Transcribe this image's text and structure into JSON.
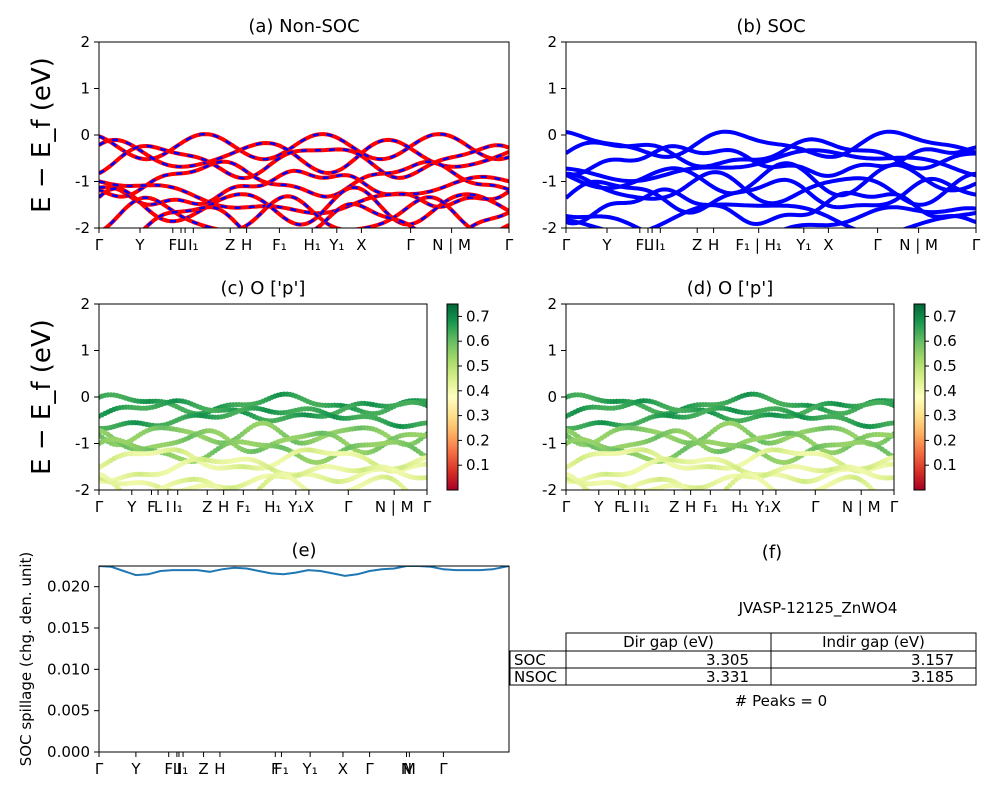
{
  "chart_data": [
    {
      "id": "a",
      "type": "line",
      "title": "(a) Non-SOC",
      "ylabel": "E − E_f (eV)",
      "ylim": [
        -2,
        2
      ],
      "yticks": [
        "-2",
        "-1",
        "0",
        "1",
        "2"
      ],
      "kpath_labels": [
        "Γ",
        "Y",
        "F",
        "L",
        "I",
        "I₁",
        "Z",
        "H",
        "F₁",
        "H₁",
        "Y₁",
        "X",
        "Γ",
        "N | M",
        "Γ"
      ],
      "kpath_positions": [
        0,
        0.1,
        0.18,
        0.2,
        0.21,
        0.23,
        0.32,
        0.36,
        0.44,
        0.52,
        0.58,
        0.64,
        0.76,
        0.86,
        1.0
      ],
      "series": [
        {
          "color": "#ff0000",
          "energies": [
            -0.25,
            -0.45,
            -0.55,
            -0.95,
            -1.15,
            -1.3,
            -1.55,
            -1.75,
            -1.9
          ]
        },
        {
          "color": "#0000ff",
          "energies": [
            -0.25,
            -0.45,
            -0.55,
            -0.95,
            -1.15,
            -1.3,
            -1.55,
            -1.75,
            -1.9
          ]
        }
      ]
    },
    {
      "id": "b",
      "type": "line",
      "title": "(b) SOC",
      "ylim": [
        -2,
        2
      ],
      "yticks": [
        "-2",
        "-1",
        "0",
        "1",
        "2"
      ],
      "kpath_labels": [
        "Γ",
        "Y",
        "F",
        "L",
        "I",
        "I₁",
        "Z",
        "H",
        "F₁ | H₁",
        "Y₁",
        "X",
        "Γ",
        "N | M",
        "Γ"
      ],
      "kpath_positions": [
        0,
        0.1,
        0.18,
        0.2,
        0.21,
        0.23,
        0.32,
        0.36,
        0.47,
        0.58,
        0.64,
        0.76,
        0.86,
        1.0
      ],
      "series": [
        {
          "color": "#0000ff",
          "energies": [
            -0.2,
            -0.4,
            -0.55,
            -0.65,
            -0.95,
            -1.15,
            -1.3,
            -1.55,
            -1.75,
            -1.9
          ]
        }
      ]
    },
    {
      "id": "c",
      "type": "scatter",
      "title": "(c)  O ['p']",
      "ylabel": "E − E_f (eV)",
      "ylim": [
        -2,
        2
      ],
      "yticks": [
        "-2",
        "-1",
        "0",
        "1",
        "2"
      ],
      "kpath_labels": [
        "Γ",
        "Y",
        "F",
        "L",
        "I",
        "I₁",
        "Z",
        "H",
        "F₁",
        "H₁",
        "Y₁",
        "X",
        "Γ",
        "N | M",
        "Γ"
      ],
      "kpath_positions": [
        0,
        0.1,
        0.16,
        0.18,
        0.21,
        0.24,
        0.33,
        0.38,
        0.44,
        0.53,
        0.6,
        0.64,
        0.76,
        0.9,
        1.0
      ],
      "colorbar_ticks": [
        "0.1",
        "0.2",
        "0.3",
        "0.4",
        "0.5",
        "0.6",
        "0.7"
      ],
      "colorbar_range": [
        0.0,
        0.75
      ],
      "energies": [
        -0.15,
        -0.3,
        -0.45,
        -0.8,
        -0.95,
        -1.15,
        -1.35,
        -1.55,
        -1.75,
        -1.95
      ]
    },
    {
      "id": "d",
      "type": "scatter",
      "title": "(d) O ['p']",
      "ylim": [
        -2,
        2
      ],
      "yticks": [
        "-2",
        "-1",
        "0",
        "1",
        "2"
      ],
      "kpath_labels": [
        "Γ",
        "Y",
        "F",
        "L",
        "I",
        "I₁",
        "Z",
        "H",
        "F₁",
        "H₁",
        "Y₁",
        "X",
        "Γ",
        "N | M",
        "Γ"
      ],
      "kpath_positions": [
        0,
        0.1,
        0.16,
        0.18,
        0.21,
        0.24,
        0.33,
        0.38,
        0.44,
        0.53,
        0.6,
        0.64,
        0.76,
        0.9,
        1.0
      ],
      "colorbar_ticks": [
        "0.1",
        "0.2",
        "0.3",
        "0.4",
        "0.5",
        "0.6",
        "0.7"
      ],
      "colorbar_range": [
        0.0,
        0.75
      ],
      "energies": [
        -0.15,
        -0.3,
        -0.45,
        -0.8,
        -0.95,
        -1.15,
        -1.35,
        -1.55,
        -1.75,
        -1.95
      ]
    },
    {
      "id": "e",
      "type": "line",
      "title": "(e)",
      "ylabel": "SOC spillage (chg. den. unit)",
      "ylim": [
        0.0,
        0.0225
      ],
      "yticks": [
        "0.000",
        "0.005",
        "0.010",
        "0.015",
        "0.020"
      ],
      "ytick_values": [
        0.0,
        0.005,
        0.01,
        0.015,
        0.02
      ],
      "kpath_labels": [
        "Γ",
        "Y",
        "F",
        "L",
        "I",
        "I₁",
        "Z",
        "H",
        "F",
        "F₁",
        "Y₁",
        "X",
        "Γ",
        "N",
        "M",
        "Γ"
      ],
      "kpath_positions": [
        0,
        0.09,
        0.17,
        0.19,
        0.195,
        0.205,
        0.255,
        0.295,
        0.43,
        0.445,
        0.515,
        0.595,
        0.66,
        0.75,
        0.757,
        0.84
      ],
      "x": [
        0,
        0.03,
        0.06,
        0.09,
        0.12,
        0.15,
        0.18,
        0.21,
        0.24,
        0.27,
        0.3,
        0.33,
        0.36,
        0.39,
        0.42,
        0.45,
        0.48,
        0.51,
        0.54,
        0.57,
        0.6,
        0.63,
        0.66,
        0.69,
        0.72,
        0.75,
        0.78,
        0.81,
        0.84,
        0.87,
        0.9,
        0.93,
        0.96,
        1.0
      ],
      "values": [
        0.0225,
        0.0224,
        0.0219,
        0.0214,
        0.0215,
        0.0219,
        0.022,
        0.022,
        0.022,
        0.0218,
        0.0221,
        0.0223,
        0.0222,
        0.0219,
        0.0216,
        0.0215,
        0.0217,
        0.022,
        0.0219,
        0.0216,
        0.0213,
        0.0215,
        0.0219,
        0.0221,
        0.0222,
        0.0225,
        0.0225,
        0.0224,
        0.0221,
        0.022,
        0.022,
        0.022,
        0.0221,
        0.0225
      ]
    },
    {
      "id": "f",
      "type": "table",
      "title": "(f)",
      "caption": "JVASP-12125_ZnWO4",
      "columns": [
        "Dir gap (eV)",
        "Indir gap (eV)"
      ],
      "rows": [
        {
          "label": "SOC",
          "values": [
            "3.305",
            "3.157"
          ]
        },
        {
          "label": "NSOC",
          "values": [
            "3.331",
            "3.185"
          ]
        }
      ],
      "footer": "# Peaks = 0"
    }
  ]
}
